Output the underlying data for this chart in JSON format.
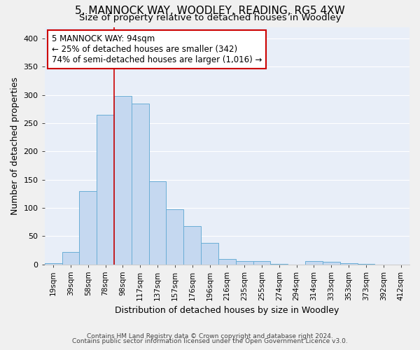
{
  "title": "5, MANNOCK WAY, WOODLEY, READING, RG5 4XW",
  "subtitle": "Size of property relative to detached houses in Woodley",
  "xlabel": "Distribution of detached houses by size in Woodley",
  "ylabel": "Number of detached properties",
  "categories": [
    "19sqm",
    "39sqm",
    "58sqm",
    "78sqm",
    "98sqm",
    "117sqm",
    "137sqm",
    "157sqm",
    "176sqm",
    "196sqm",
    "216sqm",
    "235sqm",
    "255sqm",
    "274sqm",
    "294sqm",
    "314sqm",
    "333sqm",
    "353sqm",
    "373sqm",
    "392sqm",
    "412sqm"
  ],
  "values": [
    2,
    22,
    130,
    265,
    298,
    285,
    147,
    98,
    68,
    38,
    9,
    6,
    5,
    1,
    0,
    5,
    4,
    2,
    1,
    0,
    0
  ],
  "bar_color": "#c5d8f0",
  "bar_edge_color": "#6aaed6",
  "vline_color": "#cc0000",
  "vline_x_index": 4,
  "annotation_text": "5 MANNOCK WAY: 94sqm\n← 25% of detached houses are smaller (342)\n74% of semi-detached houses are larger (1,016) →",
  "annotation_box_facecolor": "#ffffff",
  "annotation_box_edgecolor": "#cc0000",
  "ylim": [
    0,
    420
  ],
  "yticks": [
    0,
    50,
    100,
    150,
    200,
    250,
    300,
    350,
    400
  ],
  "fig_background": "#f0f0f0",
  "plot_background": "#e8eef8",
  "grid_color": "#ffffff",
  "title_fontsize": 11,
  "subtitle_fontsize": 9.5,
  "axis_label_fontsize": 9,
  "tick_fontsize": 7.5,
  "ytick_fontsize": 8,
  "footer1": "Contains HM Land Registry data © Crown copyright and database right 2024.",
  "footer2": "Contains public sector information licensed under the Open Government Licence v3.0."
}
